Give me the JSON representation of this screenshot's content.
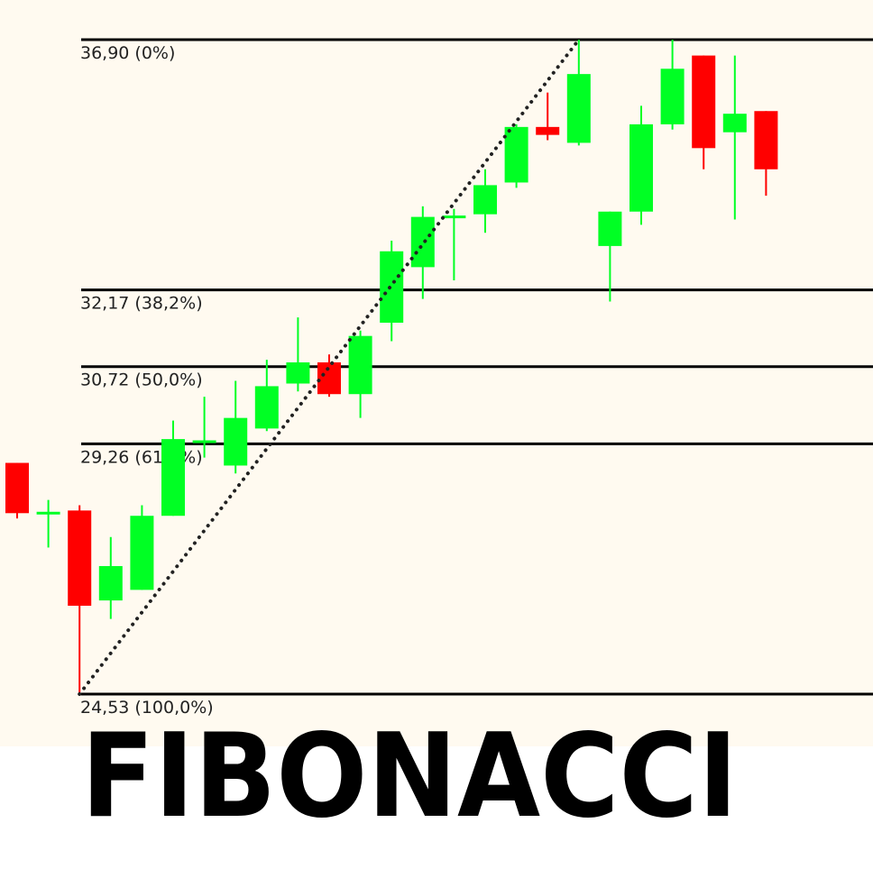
{
  "title": "FIBONACCI",
  "colors": {
    "up": "#00ff24",
    "down": "#ff0000",
    "line": "#000000",
    "background": "#fffaf0"
  },
  "chart_data": {
    "type": "candlestick",
    "ylim": [
      24.53,
      36.9
    ],
    "grid": false,
    "fib_levels": [
      {
        "price": 36.9,
        "label": "36,90 (0%)"
      },
      {
        "price": 32.17,
        "label": "32,17 (38,2%)"
      },
      {
        "price": 30.72,
        "label": "30,72 (50,0%)"
      },
      {
        "price": 29.26,
        "label": "29,26 (61,8%)"
      },
      {
        "price": 24.53,
        "label": "24,53 (100,0%)"
      }
    ],
    "trendline": {
      "from": {
        "index": 2,
        "price": 24.53
      },
      "to": {
        "index": 18,
        "price": 36.9
      },
      "style": "dotted"
    },
    "candles": [
      {
        "open": 28.9,
        "close": 27.95,
        "high": 28.9,
        "low": 27.85
      },
      {
        "open": 27.95,
        "close": 27.95,
        "high": 28.2,
        "low": 27.3
      },
      {
        "open": 28.0,
        "close": 26.2,
        "high": 28.1,
        "low": 24.53
      },
      {
        "open": 26.3,
        "close": 26.95,
        "high": 27.5,
        "low": 25.95
      },
      {
        "open": 26.5,
        "close": 27.9,
        "high": 28.1,
        "low": 26.5
      },
      {
        "open": 27.9,
        "close": 29.35,
        "high": 29.7,
        "low": 27.9
      },
      {
        "open": 29.3,
        "close": 29.3,
        "high": 30.15,
        "low": 29.0
      },
      {
        "open": 28.85,
        "close": 29.75,
        "high": 30.45,
        "low": 28.7
      },
      {
        "open": 29.55,
        "close": 30.35,
        "high": 30.85,
        "low": 29.5
      },
      {
        "open": 30.4,
        "close": 30.8,
        "high": 31.65,
        "low": 30.25
      },
      {
        "open": 30.8,
        "close": 30.2,
        "high": 30.95,
        "low": 30.15
      },
      {
        "open": 30.2,
        "close": 31.3,
        "high": 31.4,
        "low": 29.75
      },
      {
        "open": 31.55,
        "close": 32.9,
        "high": 33.1,
        "low": 31.2
      },
      {
        "open": 32.6,
        "close": 33.55,
        "high": 33.75,
        "low": 32.0
      },
      {
        "open": 33.55,
        "close": 33.55,
        "high": 33.7,
        "low": 32.35
      },
      {
        "open": 33.6,
        "close": 34.15,
        "high": 34.45,
        "low": 33.25
      },
      {
        "open": 34.2,
        "close": 35.25,
        "high": 35.3,
        "low": 34.1
      },
      {
        "open": 35.25,
        "close": 35.1,
        "high": 35.9,
        "low": 35.0
      },
      {
        "open": 34.95,
        "close": 36.25,
        "high": 36.9,
        "low": 34.9
      },
      {
        "open": 33.0,
        "close": 33.65,
        "high": 33.65,
        "low": 31.95
      },
      {
        "open": 33.65,
        "close": 35.3,
        "high": 35.65,
        "low": 33.4
      },
      {
        "open": 35.3,
        "close": 36.35,
        "high": 36.9,
        "low": 35.2
      },
      {
        "open": 36.6,
        "close": 34.85,
        "high": 36.6,
        "low": 34.45
      },
      {
        "open": 35.15,
        "close": 35.5,
        "high": 36.6,
        "low": 33.5
      },
      {
        "open": 35.55,
        "close": 34.45,
        "high": 35.55,
        "low": 33.95
      }
    ]
  }
}
